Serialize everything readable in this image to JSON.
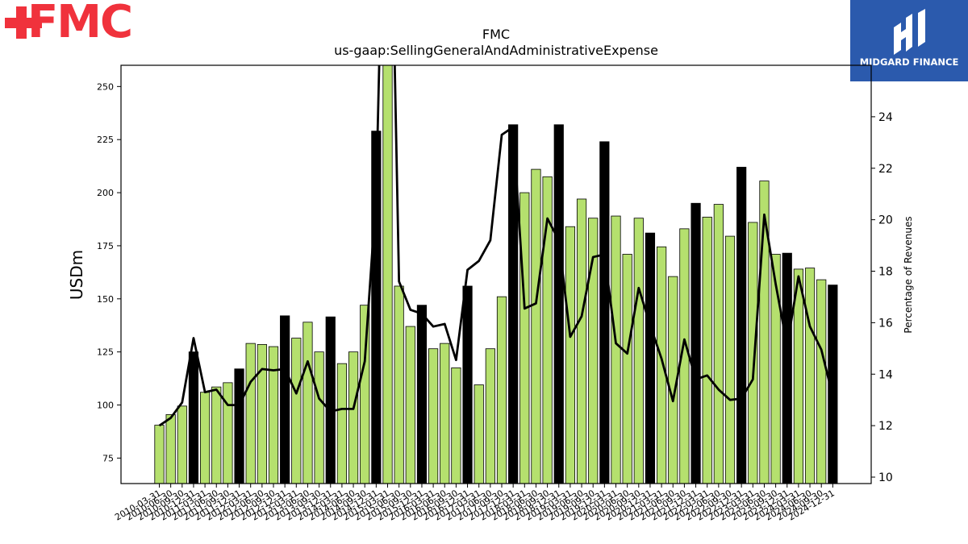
{
  "logos": {
    "left_text": "FMC",
    "left_color": "#f0323c",
    "right_text": "MIDGARD FINANCE",
    "right_bg": "#2b5aad"
  },
  "chart_data": {
    "type": "bar",
    "title": "FMC",
    "subtitle": "us-gaap:SellingGeneralAndAdministrativeExpense",
    "ylabel": "USDm",
    "y2label": "Percentage of Revenues",
    "ylim": [
      63,
      260
    ],
    "y2lim": [
      9.75,
      26.0
    ],
    "yticks": [
      75,
      100,
      125,
      150,
      175,
      200,
      225,
      250
    ],
    "y2ticks": [
      10,
      12,
      14,
      16,
      18,
      20,
      22,
      24
    ],
    "bar_color_quarter": "#b5e06e",
    "bar_color_annual": "#000000",
    "line_color": "#000000",
    "grid": false,
    "categories": [
      "2010-03-31",
      "2010-06-30",
      "2010-09-30",
      "2010-12-31",
      "2011-03-31",
      "2011-06-30",
      "2011-09-30",
      "2011-12-31",
      "2012-03-31",
      "2012-06-30",
      "2012-09-30",
      "2012-12-31",
      "2013-03-31",
      "2013-06-30",
      "2013-09-30",
      "2013-12-31",
      "2014-03-31",
      "2014-06-30",
      "2014-09-30",
      "2014-12-31",
      "2015-03-31",
      "2015-06-30",
      "2015-09-30",
      "2015-12-31",
      "2016-03-31",
      "2016-06-30",
      "2016-09-30",
      "2016-12-31",
      "2017-03-31",
      "2017-06-30",
      "2017-09-30",
      "2017-12-31",
      "2018-03-31",
      "2018-06-30",
      "2018-09-30",
      "2018-12-31",
      "2019-03-31",
      "2019-06-30",
      "2019-09-30",
      "2019-12-31",
      "2020-03-31",
      "2020-06-30",
      "2020-09-30",
      "2020-12-31",
      "2021-03-31",
      "2021-06-30",
      "2021-09-30",
      "2021-12-31",
      "2022-03-31",
      "2022-06-30",
      "2022-09-30",
      "2022-12-31",
      "2023-03-31",
      "2023-06-30",
      "2023-09-30",
      "2023-12-31",
      "2024-03-31",
      "2024-06-30",
      "2024-09-30",
      "2024-12-31"
    ],
    "series": [
      {
        "kind": "bar",
        "values": [
          90.5,
          95.5,
          99.5,
          125,
          106,
          108.5,
          110.5,
          117,
          129,
          128.5,
          127.5,
          142,
          131.5,
          139,
          125,
          141.5,
          119.5,
          125,
          147,
          229,
          265,
          156,
          137,
          147,
          126.5,
          129,
          117.5,
          156,
          109.5,
          126.5,
          151,
          232,
          200,
          211,
          207.5,
          232,
          184,
          197,
          188,
          224,
          189,
          171,
          188,
          181,
          174.5,
          160.5,
          183,
          195,
          188.5,
          194.5,
          179.5,
          212,
          186,
          205.5,
          171,
          171.5,
          164,
          164.5,
          159,
          156.5
        ],
        "annual": [
          false,
          false,
          false,
          true,
          false,
          false,
          false,
          true,
          false,
          false,
          false,
          true,
          false,
          false,
          false,
          true,
          false,
          false,
          false,
          true,
          false,
          false,
          false,
          true,
          false,
          false,
          false,
          true,
          false,
          false,
          false,
          true,
          false,
          false,
          false,
          true,
          false,
          false,
          false,
          true,
          false,
          false,
          false,
          true,
          false,
          false,
          false,
          true,
          false,
          false,
          false,
          true,
          false,
          false,
          false,
          true,
          false,
          false,
          false,
          true
        ]
      },
      {
        "kind": "line",
        "axis": "right",
        "values": [
          12.0,
          12.3,
          12.9,
          15.4,
          13.3,
          13.4,
          12.8,
          12.8,
          13.7,
          14.2,
          14.15,
          14.2,
          13.25,
          14.5,
          13.05,
          12.55,
          12.65,
          12.65,
          14.5,
          21.0,
          40.0,
          17.6,
          16.5,
          16.35,
          15.85,
          15.95,
          14.55,
          18.05,
          18.4,
          19.2,
          23.3,
          23.6,
          16.55,
          16.75,
          20.05,
          19.2,
          15.45,
          16.25,
          18.55,
          18.65,
          15.2,
          14.8,
          17.35,
          15.9,
          14.6,
          12.95,
          15.35,
          13.8,
          13.95,
          13.4,
          13.0,
          13.05,
          13.8,
          20.2,
          17.5,
          15.1,
          17.8,
          15.85,
          14.95,
          13.15
        ]
      }
    ]
  }
}
